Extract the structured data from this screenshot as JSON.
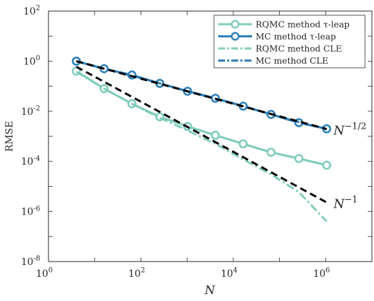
{
  "chart_data": {
    "type": "line",
    "x_scale": "log",
    "y_scale": "log",
    "xlabel": "N",
    "ylabel": "RMSE",
    "xlim": [
      1,
      10000000
    ],
    "ylim": [
      1e-08,
      100
    ],
    "x_ticks": [
      {
        "value": 1,
        "base": "10",
        "exp": "0"
      },
      {
        "value": 100,
        "base": "10",
        "exp": "2"
      },
      {
        "value": 10000,
        "base": "10",
        "exp": "4"
      },
      {
        "value": 1000000,
        "base": "10",
        "exp": "6"
      }
    ],
    "y_ticks": [
      {
        "value": 1e-08,
        "base": "10",
        "exp": "-8"
      },
      {
        "value": 1e-06,
        "base": "10",
        "exp": "-6"
      },
      {
        "value": 0.0001,
        "base": "10",
        "exp": "-4"
      },
      {
        "value": 0.01,
        "base": "10",
        "exp": "-2"
      },
      {
        "value": 1,
        "base": "10",
        "exp": "0"
      },
      {
        "value": 100,
        "base": "10",
        "exp": "2"
      }
    ],
    "legend_position": "top-right",
    "series": [
      {
        "name": "RQMC method τ-leap",
        "style": "solid-marker",
        "color": "#7fcdbb",
        "x": [
          4,
          16,
          64,
          256,
          1024,
          4096,
          16384,
          65536,
          262144,
          1048576
        ],
        "y": [
          0.4,
          0.08,
          0.02,
          0.006,
          0.0025,
          0.0011,
          0.0005,
          0.00023,
          0.00013,
          7e-05
        ]
      },
      {
        "name": "MC method τ-leap",
        "style": "solid-marker",
        "color": "#2c7fb8",
        "x": [
          4,
          16,
          64,
          256,
          1024,
          4096,
          16384,
          65536,
          262144,
          1048576
        ],
        "y": [
          1.0,
          0.5,
          0.28,
          0.13,
          0.063,
          0.033,
          0.016,
          0.0075,
          0.0035,
          0.002
        ]
      },
      {
        "name": "RQMC method CLE",
        "style": "dashdot",
        "color": "#7fcdbb",
        "x": [
          4,
          16,
          64,
          256,
          1024,
          4096,
          16384,
          65536,
          262144,
          1048576
        ],
        "y": [
          0.38,
          0.08,
          0.02,
          0.0055,
          0.0017,
          0.0005,
          0.00012,
          3e-05,
          6e-06,
          4e-07
        ]
      },
      {
        "name": "MC method CLE",
        "style": "dashdot",
        "color": "#2c7fb8",
        "x": [
          4,
          16,
          64,
          256,
          1024,
          4096,
          16384,
          65536,
          262144,
          1048576
        ],
        "y": [
          1.0,
          0.5,
          0.26,
          0.13,
          0.062,
          0.032,
          0.016,
          0.0075,
          0.0037,
          0.0019
        ]
      }
    ],
    "reference_lines": [
      {
        "label_base": "N",
        "label_exp": "−1/2",
        "color": "#000000",
        "x": [
          4,
          1048576
        ],
        "y": [
          1.0,
          0.00195
        ]
      },
      {
        "label_base": "N",
        "label_exp": "−1",
        "color": "#000000",
        "x": [
          4,
          1048576
        ],
        "y": [
          0.6,
          2.3e-06
        ]
      }
    ]
  }
}
